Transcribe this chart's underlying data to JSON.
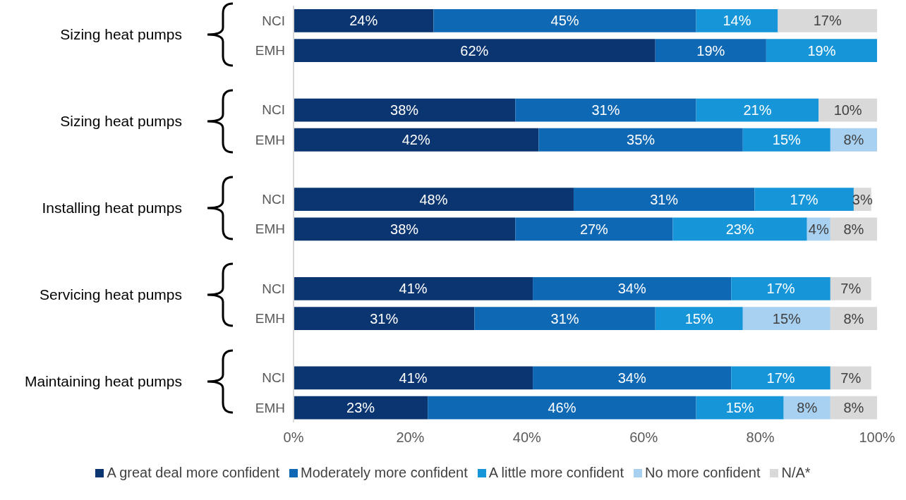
{
  "chart_data": {
    "type": "bar",
    "orientation": "horizontal",
    "stacked": true,
    "legend": "bottom",
    "grid": false,
    "categories": [
      "NCI",
      "EMH",
      "NCI",
      "EMH",
      "NCI",
      "EMH",
      "NCI",
      "EMH",
      "NCI",
      "EMH"
    ],
    "annotations": [
      "Sizing heat pumps",
      "Sizing heat pumps",
      "Installing heat pumps",
      "Servicing heat pumps",
      "Maintaining heat pumps"
    ],
    "xlim": [
      0,
      100
    ],
    "xticks": [
      {
        "value": 0,
        "label": "0%"
      },
      {
        "value": 20,
        "label": "20%"
      },
      {
        "value": 40,
        "label": "40%"
      },
      {
        "value": 60,
        "label": "60%"
      },
      {
        "value": 80,
        "label": "80%"
      },
      {
        "value": 100,
        "label": "100%"
      }
    ],
    "series": [
      {
        "name": "A great deal more confident",
        "color": "#0b3571",
        "values": [
          24,
          62,
          38,
          42,
          48,
          38,
          41,
          31,
          41,
          23
        ],
        "value_labels": [
          "24%",
          "62%",
          "38%",
          "42%",
          "48%",
          "38%",
          "41%",
          "31%",
          "41%",
          "23%"
        ]
      },
      {
        "name": "Moderately more confident",
        "color": "#0f68b4",
        "values": [
          45,
          19,
          31,
          35,
          31,
          27,
          34,
          31,
          34,
          46
        ],
        "value_labels": [
          "45%",
          "19%",
          "31%",
          "35%",
          "31%",
          "27%",
          "34%",
          "31%",
          "34%",
          "46%"
        ]
      },
      {
        "name": "A little more confident",
        "color": "#1696d9",
        "values": [
          14,
          19,
          21,
          15,
          17,
          23,
          17,
          15,
          17,
          15
        ],
        "value_labels": [
          "14%",
          "19%",
          "21%",
          "15%",
          "17%",
          "23%",
          "17%",
          "15%",
          "17%",
          "15%"
        ]
      },
      {
        "name": "No more confident",
        "color": "#a8d0f0",
        "values": [
          null,
          null,
          null,
          8,
          null,
          4,
          null,
          15,
          null,
          8
        ],
        "value_labels": [
          null,
          null,
          null,
          "8%",
          null,
          "4%",
          null,
          "15%",
          null,
          "8%"
        ]
      },
      {
        "name": "N/A*",
        "color": "#d9d9d9",
        "values": [
          17,
          null,
          10,
          null,
          3,
          8,
          7,
          8,
          7,
          8
        ],
        "value_labels": [
          "17%",
          null,
          "10%",
          null,
          "3%",
          "8%",
          "7%",
          "8%",
          "7%",
          "8%"
        ]
      }
    ]
  }
}
